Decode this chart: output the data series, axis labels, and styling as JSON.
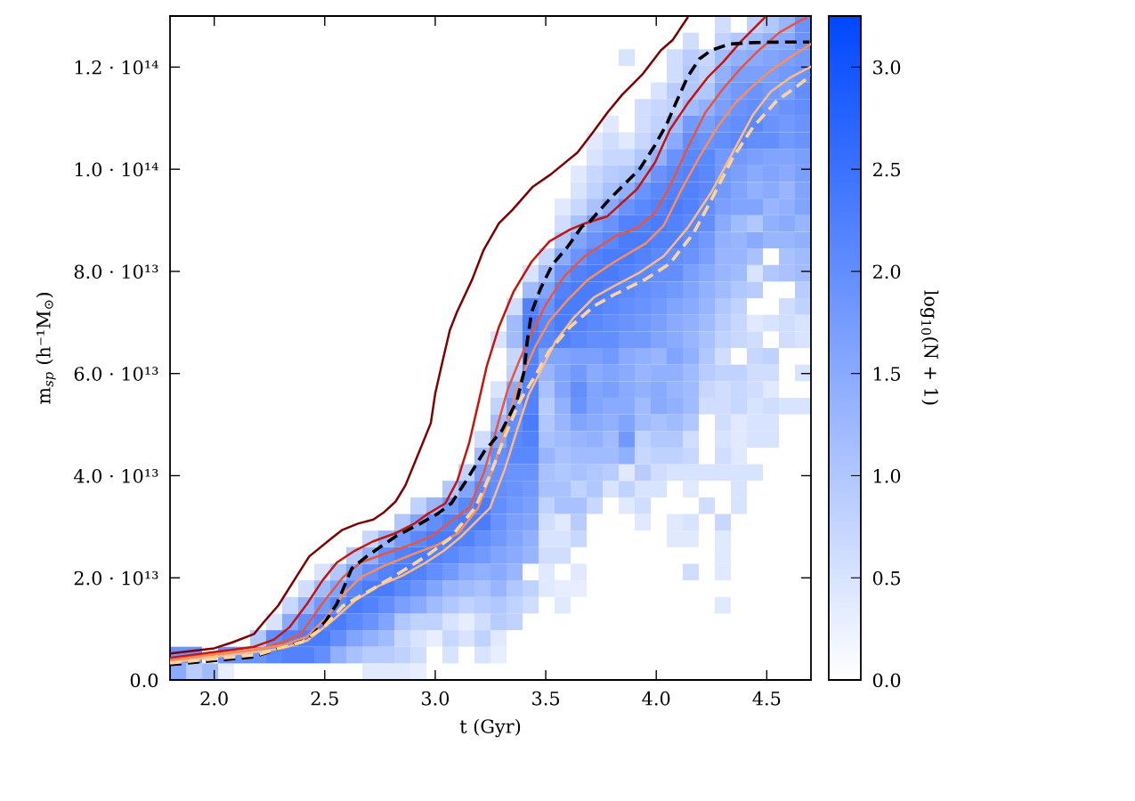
{
  "chart_data": {
    "type": "heatmap",
    "xlabel": "t (Gyr)",
    "ylabel": "m$_{sp}$ (h⁻¹M$_{⊙}$)",
    "clabel": "log$_{10}$(N + 1)",
    "xlim": [
      1.8,
      4.7
    ],
    "ylim": [
      0,
      130000000000000.0
    ],
    "xticks": [
      {
        "value": 2,
        "label": "2.0"
      },
      {
        "value": 2.5,
        "label": "2.5"
      },
      {
        "value": 3,
        "label": "3.0"
      },
      {
        "value": 3.5,
        "label": "3.5"
      },
      {
        "value": 4,
        "label": "4.0"
      },
      {
        "value": 4.5,
        "label": "4.5"
      }
    ],
    "yticks": [
      {
        "value": 0,
        "label": "0.0"
      },
      {
        "value": 20000000000000.0,
        "label": "2.0 · 10¹³"
      },
      {
        "value": 40000000000000.0,
        "label": "4.0 · 10¹³"
      },
      {
        "value": 60000000000000.0,
        "label": "6.0 · 10¹³"
      },
      {
        "value": 80000000000000.0,
        "label": "8.0 · 10¹³"
      },
      {
        "value": 100000000000000.0,
        "label": "1.0 · 10¹⁴"
      },
      {
        "value": 120000000000000.0,
        "label": "1.2 · 10¹⁴"
      }
    ],
    "colors": [
      "#ffffff",
      "#0047ff"
    ],
    "clim": [
      0,
      3.25
    ],
    "cticks": [
      {
        "value": 0,
        "label": "0.0"
      },
      {
        "value": 0.5,
        "label": "0.5"
      },
      {
        "value": 1,
        "label": "1.0"
      },
      {
        "value": 1.5,
        "label": "1.5"
      },
      {
        "value": 2,
        "label": "2.0"
      },
      {
        "value": 2.5,
        "label": "2.5"
      },
      {
        "value": 3,
        "label": "3.0"
      }
    ],
    "cells": [
      [
        null,
        null,
        null,
        null,
        null,
        null,
        null,
        null,
        null,
        null,
        null,
        null,
        null,
        null,
        null,
        null,
        null,
        null,
        null,
        null,
        null,
        null,
        null,
        null,
        null,
        null,
        null,
        null,
        null,
        null,
        null,
        null,
        null,
        null,
        0.6,
        null,
        0.8,
        1.0,
        1.3,
        1.9
      ],
      [
        null,
        null,
        null,
        null,
        null,
        null,
        null,
        null,
        null,
        null,
        null,
        null,
        null,
        null,
        null,
        null,
        null,
        null,
        null,
        null,
        null,
        null,
        null,
        null,
        null,
        null,
        null,
        null,
        null,
        null,
        null,
        null,
        0.6,
        null,
        0.8,
        1.0,
        1.2,
        1.4,
        1.5,
        1.9
      ],
      [
        null,
        null,
        null,
        null,
        null,
        null,
        null,
        null,
        null,
        null,
        null,
        null,
        null,
        null,
        null,
        null,
        null,
        null,
        null,
        null,
        null,
        null,
        null,
        null,
        null,
        null,
        null,
        null,
        0.5,
        null,
        null,
        0.6,
        0.9,
        0.7,
        1.2,
        1.4,
        1.5,
        1.6,
        1.7,
        1.8
      ],
      [
        null,
        null,
        null,
        null,
        null,
        null,
        null,
        null,
        null,
        null,
        null,
        null,
        null,
        null,
        null,
        null,
        null,
        null,
        null,
        null,
        null,
        null,
        null,
        null,
        null,
        null,
        null,
        null,
        null,
        null,
        null,
        0.6,
        1.0,
        0.8,
        1.4,
        1.7,
        1.7,
        1.7,
        1.8,
        1.9
      ],
      [
        null,
        null,
        null,
        null,
        null,
        null,
        null,
        null,
        null,
        null,
        null,
        null,
        null,
        null,
        null,
        null,
        null,
        null,
        null,
        null,
        null,
        null,
        null,
        null,
        null,
        null,
        null,
        null,
        null,
        null,
        0.5,
        0.9,
        1.0,
        1.0,
        1.6,
        1.8,
        1.9,
        1.8,
        1.7,
        2.0
      ],
      [
        null,
        null,
        null,
        null,
        null,
        null,
        null,
        null,
        null,
        null,
        null,
        null,
        null,
        null,
        null,
        null,
        null,
        null,
        null,
        null,
        null,
        null,
        null,
        null,
        null,
        null,
        null,
        null,
        null,
        0.6,
        0.7,
        0.8,
        1.2,
        1.4,
        1.7,
        1.9,
        2.0,
        1.8,
        1.9,
        2.0
      ],
      [
        null,
        null,
        null,
        null,
        null,
        null,
        null,
        null,
        null,
        null,
        null,
        null,
        null,
        null,
        null,
        null,
        null,
        null,
        null,
        null,
        null,
        null,
        null,
        null,
        null,
        null,
        null,
        0.4,
        null,
        0.6,
        0.8,
        1.2,
        1.8,
        1.7,
        1.9,
        2.0,
        2.1,
        1.9,
        1.8,
        1.9
      ],
      [
        null,
        null,
        null,
        null,
        null,
        null,
        null,
        null,
        null,
        null,
        null,
        null,
        null,
        null,
        null,
        null,
        null,
        null,
        null,
        null,
        null,
        null,
        null,
        null,
        null,
        null,
        0.4,
        0.6,
        0.4,
        0.7,
        1.0,
        1.5,
        2.0,
        1.9,
        2.0,
        2.1,
        2.0,
        2.0,
        1.8,
        1.9
      ],
      [
        null,
        null,
        null,
        null,
        null,
        null,
        null,
        null,
        null,
        null,
        null,
        null,
        null,
        null,
        null,
        null,
        null,
        null,
        null,
        null,
        null,
        null,
        null,
        null,
        null,
        null,
        0.5,
        0.7,
        0.7,
        1.0,
        1.4,
        1.9,
        2.1,
        2.1,
        1.8,
        1.8,
        1.7,
        1.6,
        1.6,
        1.7
      ],
      [
        null,
        null,
        null,
        null,
        null,
        null,
        null,
        null,
        null,
        null,
        null,
        null,
        null,
        null,
        null,
        null,
        null,
        null,
        null,
        null,
        null,
        null,
        null,
        null,
        null,
        0.4,
        0.7,
        0.9,
        1.0,
        1.4,
        1.9,
        2.1,
        2.2,
        2.1,
        1.8,
        1.7,
        1.5,
        1.6,
        1.5,
        1.7
      ],
      [
        null,
        null,
        null,
        null,
        null,
        null,
        null,
        null,
        null,
        null,
        null,
        null,
        null,
        null,
        null,
        null,
        null,
        null,
        null,
        null,
        null,
        null,
        null,
        null,
        null,
        0.5,
        0.8,
        1.1,
        1.4,
        1.9,
        2.1,
        2.2,
        2.2,
        2.1,
        1.8,
        1.6,
        1.4,
        1.5,
        1.3,
        1.6
      ],
      [
        null,
        null,
        null,
        null,
        null,
        null,
        null,
        null,
        null,
        null,
        null,
        null,
        null,
        null,
        null,
        null,
        null,
        null,
        null,
        null,
        null,
        null,
        null,
        null,
        0.4,
        0.7,
        1.1,
        1.5,
        1.9,
        2.1,
        2.2,
        2.3,
        2.2,
        2.0,
        1.7,
        1.6,
        1.6,
        1.3,
        1.4,
        1.6
      ],
      [
        null,
        null,
        null,
        null,
        null,
        null,
        null,
        null,
        null,
        null,
        null,
        null,
        null,
        null,
        null,
        null,
        null,
        null,
        null,
        null,
        null,
        null,
        null,
        null,
        0.6,
        1.1,
        1.7,
        1.9,
        2.2,
        2.2,
        2.3,
        2.2,
        2.1,
        2.0,
        1.5,
        1.2,
        1.0,
        1.4,
        1.5,
        1.3
      ],
      [
        null,
        null,
        null,
        null,
        null,
        null,
        null,
        null,
        null,
        null,
        null,
        null,
        null,
        null,
        null,
        null,
        null,
        null,
        null,
        null,
        null,
        null,
        null,
        null,
        1.0,
        1.6,
        1.9,
        2.1,
        2.3,
        2.3,
        2.2,
        2.2,
        2.0,
        1.8,
        1.4,
        1.3,
        1.5,
        1.3,
        1.3,
        1.4
      ],
      [
        null,
        null,
        null,
        null,
        null,
        null,
        null,
        null,
        null,
        null,
        null,
        null,
        null,
        null,
        null,
        null,
        null,
        null,
        null,
        null,
        null,
        null,
        null,
        0.7,
        1.5,
        1.9,
        2.2,
        2.3,
        2.3,
        2.2,
        2.1,
        2.0,
        1.9,
        1.7,
        1.3,
        1.3,
        1.1,
        null,
        1.1,
        1.2
      ],
      [
        null,
        null,
        null,
        null,
        null,
        null,
        null,
        null,
        null,
        null,
        null,
        null,
        null,
        null,
        null,
        null,
        null,
        null,
        null,
        null,
        null,
        null,
        0.5,
        1.2,
        1.9,
        2.2,
        2.3,
        2.3,
        2.2,
        2.1,
        2.0,
        2.0,
        1.7,
        1.5,
        1.3,
        1.2,
        0.5,
        1.0,
        1.1,
        1.2
      ],
      [
        null,
        null,
        null,
        null,
        null,
        null,
        null,
        null,
        null,
        null,
        null,
        null,
        null,
        null,
        null,
        null,
        null,
        null,
        null,
        null,
        null,
        null,
        1.2,
        1.6,
        2.2,
        2.3,
        2.3,
        2.2,
        2.1,
        2.0,
        1.9,
        1.8,
        1.6,
        1.4,
        1.2,
        1.0,
        0.9,
        null,
        null,
        0.9
      ],
      [
        null,
        null,
        null,
        null,
        null,
        null,
        null,
        null,
        null,
        null,
        null,
        null,
        null,
        null,
        null,
        null,
        null,
        null,
        null,
        null,
        null,
        0.6,
        2.2,
        1.9,
        2.3,
        2.3,
        2.2,
        2.1,
        2.0,
        1.9,
        1.8,
        1.6,
        1.5,
        1.3,
        1.0,
        0.8,
        null,
        null,
        0.6,
        0.8
      ],
      [
        null,
        null,
        null,
        null,
        null,
        null,
        null,
        null,
        null,
        null,
        null,
        null,
        null,
        null,
        null,
        null,
        null,
        null,
        null,
        null,
        null,
        1.2,
        2.3,
        2.1,
        2.3,
        2.2,
        2.1,
        2.0,
        1.9,
        1.8,
        1.7,
        1.5,
        1.4,
        1.2,
        0.9,
        0.7,
        0.4,
        0.5,
        0.6,
        0.5
      ],
      [
        null,
        null,
        null,
        null,
        null,
        null,
        null,
        null,
        null,
        null,
        null,
        null,
        null,
        null,
        null,
        null,
        null,
        null,
        null,
        null,
        0.5,
        1.2,
        2.3,
        2.1,
        2.2,
        2.1,
        2.0,
        2.0,
        1.8,
        1.8,
        1.6,
        1.5,
        1.3,
        1.1,
        0.8,
        0.7,
        0.6,
        null,
        0.6,
        0.5
      ],
      [
        null,
        null,
        null,
        null,
        null,
        null,
        null,
        null,
        null,
        null,
        null,
        null,
        null,
        null,
        null,
        null,
        null,
        null,
        null,
        null,
        null,
        0.7,
        2.2,
        1.6,
        1.6,
        1.7,
        1.7,
        1.8,
        1.5,
        1.4,
        1.3,
        1.6,
        1.4,
        1.0,
        0.6,
        null,
        0.7,
        0.8,
        null,
        null
      ],
      [
        null,
        null,
        null,
        null,
        null,
        null,
        null,
        null,
        null,
        null,
        null,
        null,
        null,
        null,
        null,
        null,
        null,
        null,
        null,
        null,
        null,
        0.8,
        2.2,
        1.3,
        1.6,
        1.8,
        1.5,
        1.6,
        1.5,
        1.3,
        1.4,
        1.4,
        1.2,
        0.9,
        0.8,
        0.8,
        0.6,
        0.6,
        null,
        0.5
      ],
      [
        null,
        null,
        null,
        null,
        null,
        null,
        null,
        null,
        null,
        null,
        null,
        null,
        null,
        null,
        null,
        null,
        null,
        null,
        null,
        null,
        0.5,
        1.5,
        2.2,
        1.1,
        1.6,
        2.0,
        1.6,
        1.7,
        1.5,
        1.4,
        1.5,
        1.3,
        1.2,
        0.7,
        0.6,
        0.7,
        0.6,
        0.4,
        null,
        null
      ],
      [
        null,
        null,
        null,
        null,
        null,
        null,
        null,
        null,
        null,
        null,
        null,
        null,
        null,
        null,
        null,
        null,
        null,
        null,
        null,
        null,
        0.8,
        1.8,
        2.2,
        0.9,
        1.4,
        1.9,
        1.6,
        1.5,
        1.5,
        1.2,
        1.5,
        1.4,
        1.2,
        0.6,
        0.6,
        0.7,
        0.5,
        0.6,
        0.5,
        0.5
      ],
      [
        null,
        null,
        null,
        null,
        null,
        null,
        null,
        null,
        null,
        null,
        null,
        null,
        null,
        null,
        null,
        null,
        null,
        null,
        null,
        null,
        1.2,
        2.0,
        2.3,
        1.0,
        1.3,
        1.6,
        1.5,
        1.4,
        1.6,
        1.2,
        1.1,
        1.2,
        1.0,
        null,
        0.6,
        0.4,
        0.5,
        0.5,
        null,
        null
      ],
      [
        null,
        null,
        null,
        null,
        null,
        null,
        null,
        null,
        null,
        null,
        null,
        null,
        null,
        null,
        null,
        null,
        null,
        null,
        null,
        0.6,
        1.6,
        2.1,
        2.2,
        1.1,
        1.2,
        1.3,
        1.4,
        1.2,
        1.8,
        0.8,
        1.0,
        1.0,
        0.6,
        null,
        0.5,
        0.4,
        0.5,
        0.5,
        null,
        null
      ],
      [
        null,
        null,
        null,
        null,
        null,
        null,
        null,
        null,
        null,
        null,
        null,
        null,
        null,
        null,
        null,
        null,
        null,
        null,
        null,
        1.2,
        2.0,
        2.1,
        2.1,
        1.3,
        1.1,
        1.2,
        1.2,
        1.2,
        1.4,
        0.7,
        0.8,
        0.8,
        0.7,
        null,
        0.6,
        0.4,
        null,
        null,
        null,
        null
      ],
      [
        null,
        null,
        null,
        null,
        null,
        null,
        null,
        null,
        null,
        null,
        null,
        null,
        null,
        null,
        null,
        null,
        null,
        null,
        0.8,
        1.7,
        2.0,
        1.9,
        1.9,
        1.1,
        1.0,
        1.1,
        1.0,
        0.9,
        0.4,
        0.9,
        0.6,
        0.5,
        0.5,
        0.5,
        0.5,
        0.5,
        0.5,
        null,
        null,
        null
      ],
      [
        null,
        null,
        null,
        null,
        null,
        null,
        null,
        null,
        null,
        null,
        null,
        null,
        null,
        null,
        null,
        null,
        null,
        1.0,
        1.6,
        2.1,
        2.0,
        1.9,
        1.8,
        1.1,
        1.1,
        0.8,
        1.0,
        0.5,
        0.8,
        0.5,
        0.5,
        null,
        0.4,
        null,
        null,
        0.5,
        null,
        null,
        null,
        null
      ],
      [
        null,
        null,
        null,
        null,
        null,
        null,
        null,
        null,
        null,
        null,
        null,
        null,
        null,
        null,
        null,
        0.8,
        1.3,
        1.8,
        2.1,
        2.3,
        2.0,
        1.8,
        1.7,
        0.8,
        1.1,
        1.1,
        0.7,
        null,
        0.4,
        0.6,
        null,
        null,
        null,
        0.6,
        null,
        0.5,
        null,
        null,
        null,
        null
      ],
      [
        null,
        null,
        null,
        null,
        null,
        null,
        null,
        null,
        null,
        null,
        null,
        null,
        null,
        null,
        1.0,
        1.6,
        2.0,
        2.2,
        2.3,
        2.3,
        1.9,
        1.7,
        1.6,
        0.6,
        0.4,
        0.9,
        null,
        null,
        null,
        0.4,
        null,
        0.4,
        0.5,
        null,
        0.7,
        null,
        null,
        null,
        null,
        null
      ],
      [
        null,
        null,
        null,
        null,
        null,
        null,
        null,
        null,
        null,
        null,
        null,
        null,
        0.7,
        1.3,
        1.8,
        2.1,
        2.3,
        2.3,
        2.2,
        2.0,
        1.8,
        1.6,
        1.4,
        0.5,
        0.5,
        0.7,
        null,
        null,
        null,
        null,
        null,
        0.4,
        0.4,
        null,
        0.4,
        null,
        null,
        null,
        null,
        null
      ],
      [
        null,
        null,
        null,
        null,
        null,
        null,
        null,
        null,
        null,
        null,
        null,
        0.9,
        1.4,
        2.0,
        2.2,
        2.3,
        2.2,
        2.1,
        1.9,
        1.8,
        1.6,
        1.5,
        1.3,
        0.6,
        0.6,
        null,
        null,
        null,
        null,
        null,
        null,
        null,
        null,
        null,
        0.4,
        null,
        null,
        null,
        null,
        null
      ],
      [
        null,
        null,
        null,
        null,
        null,
        null,
        null,
        null,
        null,
        0.5,
        1.0,
        1.6,
        2.0,
        2.2,
        2.3,
        2.2,
        2.0,
        1.8,
        1.5,
        1.4,
        1.5,
        1.3,
        null,
        0.4,
        null,
        0.4,
        null,
        null,
        null,
        null,
        null,
        null,
        0.6,
        null,
        0.4,
        null,
        null,
        null,
        null,
        null
      ],
      [
        null,
        null,
        null,
        null,
        null,
        null,
        null,
        null,
        0.6,
        1.2,
        1.6,
        2.1,
        2.3,
        2.3,
        2.1,
        1.9,
        1.6,
        1.3,
        1.2,
        1.1,
        1.3,
        1.0,
        0.8,
        0.4,
        0.3,
        0.3,
        null,
        null,
        null,
        null,
        null,
        null,
        null,
        null,
        null,
        null,
        null,
        null,
        null,
        null
      ],
      [
        null,
        null,
        null,
        null,
        null,
        null,
        null,
        0.7,
        1.3,
        1.8,
        2.1,
        2.3,
        2.2,
        2.0,
        1.7,
        1.5,
        1.2,
        1.0,
        0.8,
        0.9,
        1.0,
        0.8,
        0.6,
        null,
        0.4,
        null,
        null,
        null,
        null,
        null,
        null,
        null,
        null,
        null,
        0.4,
        null,
        null,
        null,
        null,
        null
      ],
      [
        null,
        null,
        null,
        null,
        null,
        null,
        0.5,
        1.5,
        2.0,
        2.2,
        2.3,
        2.1,
        1.9,
        1.6,
        1.0,
        0.8,
        0.8,
        0.5,
        0.3,
        0.6,
        0.9,
        0.8,
        null,
        null,
        null,
        null,
        null,
        null,
        null,
        null,
        null,
        null,
        null,
        null,
        null,
        null,
        null,
        null,
        null,
        null
      ],
      [
        null,
        null,
        null,
        null,
        null,
        1.0,
        2.0,
        2.2,
        2.3,
        2.3,
        2.0,
        1.6,
        1.4,
        1.2,
        0.7,
        0.5,
        0.3,
        0.7,
        0.5,
        0.8,
        0.4,
        null,
        null,
        null,
        null,
        null,
        null,
        null,
        null,
        null,
        null,
        null,
        null,
        null,
        null,
        null,
        null,
        null,
        null,
        null
      ],
      [
        1.9,
        1.9,
        null,
        1.9,
        1.9,
        1.9,
        2.1,
        2.2,
        2.2,
        2.0,
        1.4,
        1.1,
        0.9,
        0.9,
        0.8,
        0.6,
        null,
        0.5,
        null,
        0.5,
        0.3,
        null,
        null,
        null,
        null,
        null,
        null,
        null,
        null,
        null,
        null,
        null,
        null,
        null,
        null,
        null,
        null,
        null,
        null,
        null
      ],
      [
        1.5,
        0.9,
        1.2,
        0.3,
        null,
        null,
        null,
        null,
        null,
        null,
        null,
        null,
        0.4,
        0.4,
        0.4,
        0.3,
        null,
        null,
        null,
        null,
        null,
        null,
        null,
        null,
        null,
        null,
        null,
        null,
        null,
        null,
        null,
        null,
        null,
        null,
        null,
        null,
        null,
        null,
        null,
        null
      ]
    ],
    "series": [
      {
        "type": "line",
        "color": "#7f0000",
        "line_style": "solid",
        "x": [
          1.8,
          2.0,
          2.085,
          2.18,
          2.22,
          2.29,
          2.37,
          2.43,
          2.53,
          2.58,
          2.65,
          2.72,
          2.77,
          2.82,
          2.865,
          2.92,
          2.98,
          3.0,
          3.033,
          3.066,
          3.098,
          3.167,
          3.219,
          3.288,
          3.348,
          3.442,
          3.523,
          3.644,
          3.711,
          3.779,
          3.846,
          3.94,
          4.021,
          4.074,
          4.142
        ],
        "values": [
          5200000000000.0,
          6200000000000.0,
          7400000000000.0,
          9000000000000.0,
          11100000000000.0,
          14600000000000.0,
          20100000000000.0,
          24200000000000.0,
          27700000000000.0,
          29400000000000.0,
          30600000000000.0,
          31400000000000.0,
          32900000000000.0,
          34900000000000.0,
          38100000000000.0,
          43900000000000.0,
          50300000000000.0,
          56100000000000.0,
          62400000000000.0,
          68500000000000.0,
          72000000000000.0,
          78400000000000.0,
          84200000000000.0,
          89400000000000.0,
          92000000000000.0,
          96600000000000.0,
          99000000000000.0,
          103300000000000.0,
          107100000000000.0,
          111100000000000.0,
          114600000000000.0,
          118700000000000.0,
          123300000000000.0,
          125300000000000.0,
          129700000000000.0
        ]
      },
      {
        "type": "line",
        "color": "#c4160f",
        "line_style": "solid",
        "x": [
          1.8,
          2.18,
          2.27,
          2.34,
          2.42,
          2.49,
          2.555,
          2.636,
          2.717,
          2.824,
          2.905,
          2.958,
          3.046,
          3.1,
          3.154,
          3.194,
          3.234,
          3.288,
          3.355,
          3.436,
          3.517,
          3.61,
          3.678,
          3.779,
          3.913,
          3.994,
          4.061,
          4.142,
          4.235,
          4.303,
          4.383,
          4.491
        ],
        "values": [
          4300000000000.0,
          6500000000000.0,
          7900000000000.0,
          10300000000000.0,
          14900000000000.0,
          19500000000000.0,
          23000000000000.0,
          25300000000000.0,
          27100000000000.0,
          28800000000000.0,
          30600000000000.0,
          32300000000000.0,
          34600000000000.0,
          39000000000000.0,
          46500000000000.0,
          54000000000000.0,
          61600000000000.0,
          69100000000000.0,
          76100000000000.0,
          81900000000000.0,
          85900000000000.0,
          88200000000000.0,
          89400000000000.0,
          90800000000000.0,
          96100000000000.0,
          101300000000000.0,
          107700000000000.0,
          112900000000000.0,
          118100000000000.0,
          121000000000000.0,
          125000000000000.0,
          129700000000000.0
        ]
      },
      {
        "type": "line",
        "color": "#e9553c",
        "line_style": "solid",
        "x": [
          1.8,
          2.22,
          2.31,
          2.394,
          2.488,
          2.582,
          2.663,
          2.771,
          2.892,
          2.985,
          3.053,
          3.154,
          3.221,
          3.275,
          3.328,
          3.382,
          3.436,
          3.503,
          3.583,
          3.678,
          3.758,
          3.812,
          3.913,
          3.994,
          4.061,
          4.142,
          4.222,
          4.303,
          4.383,
          4.464,
          4.558,
          4.652,
          4.679
        ],
        "values": [
          4000000000000.0,
          6200000000000.0,
          7400000000000.0,
          9100000000000.0,
          14900000000000.0,
          20100000000000.0,
          23000000000000.0,
          24700000000000.0,
          26500000000000.0,
          28200000000000.0,
          30500000000000.0,
          33700000000000.0,
          40700000000000.0,
          48800000000000.0,
          56900000000000.0,
          62700000000000.0,
          67900000000000.0,
          73700000000000.0,
          79000000000000.0,
          83000000000000.0,
          85300000000000.0,
          86800000000000.0,
          88500000000000.0,
          91400000000000.0,
          96600000000000.0,
          104200000000000.0,
          111100000000000.0,
          115800000000000.0,
          119800000000000.0,
          123300000000000.0,
          126800000000000.0,
          129100000000000.0,
          129600000000000.0
        ]
      },
      {
        "type": "line",
        "color": "#fc8d59",
        "line_style": "solid",
        "x": [
          1.8,
          2.313,
          2.421,
          2.502,
          2.582,
          2.663,
          2.771,
          2.892,
          3.013,
          3.106,
          3.194,
          3.261,
          3.315,
          3.369,
          3.409,
          3.449,
          3.517,
          3.597,
          3.691,
          3.812,
          3.953,
          4.034,
          4.115,
          4.195,
          4.276,
          4.356,
          4.437,
          4.518,
          4.612,
          4.7
        ],
        "values": [
          3800000000000.0,
          6800000000000.0,
          8500000000000.0,
          12000000000000.0,
          16600000000000.0,
          20100000000000.0,
          22400000000000.0,
          24500000000000.0,
          26500000000000.0,
          28800000000000.0,
          33700000000000.0,
          41300000000000.0,
          48800000000000.0,
          56900000000000.0,
          61000000000000.0,
          65000000000000.0,
          70300000000000.0,
          74300000000000.0,
          78400000000000.0,
          81900000000000.0,
          85500000000000.0,
          89000000000000.0,
          96100000000000.0,
          102400000000000.0,
          108200000000000.0,
          112900000000000.0,
          116300000000000.0,
          119300000000000.0,
          122100000000000.0,
          124500000000000.0
        ]
      },
      {
        "type": "line",
        "color": "#fdbb84",
        "line_style": "solid",
        "x": [
          1.8,
          2.313,
          2.421,
          2.529,
          2.636,
          2.744,
          2.851,
          2.958,
          3.039,
          3.12,
          3.248,
          3.315,
          3.369,
          3.422,
          3.476,
          3.543,
          3.624,
          3.718,
          3.812,
          3.926,
          4.034,
          4.142,
          4.249,
          4.343,
          4.437,
          4.518,
          4.612,
          4.7
        ],
        "values": [
          3400000000000.0,
          6200000000000.0,
          7700000000000.0,
          11400000000000.0,
          15500000000000.0,
          18400000000000.0,
          20400000000000.0,
          23000000000000.0,
          25300000000000.0,
          28200000000000.0,
          33700000000000.0,
          41300000000000.0,
          48800000000000.0,
          55800000000000.0,
          60400000000000.0,
          66200000000000.0,
          70800000000000.0,
          74900000000000.0,
          77200000000000.0,
          79800000000000.0,
          83000000000000.0,
          88500000000000.0,
          95500000000000.0,
          103000000000000.0,
          110600000000000.0,
          115200000000000.0,
          118100000000000.0,
          120100000000000.0
        ]
      },
      {
        "type": "line",
        "color": "#000000",
        "line_style": "dashed",
        "x": [
          1.8,
          2.179,
          2.421,
          2.502,
          2.555,
          2.623,
          2.69,
          2.824,
          2.932,
          3.013,
          3.073,
          3.14,
          3.221,
          3.301,
          3.369,
          3.402,
          3.416,
          3.436,
          3.476,
          3.53,
          3.597,
          3.664,
          3.698,
          3.792,
          3.873,
          3.926,
          3.994,
          4.047,
          4.088,
          4.142,
          4.195,
          4.249,
          4.33,
          4.437,
          4.572,
          4.693
        ],
        "values": [
          3000000000000.0,
          4500000000000.0,
          7900000000000.0,
          11400000000000.0,
          14900000000000.0,
          21900000000000.0,
          24200000000000.0,
          28200000000000.0,
          30600000000000.0,
          32600000000000.0,
          34600000000000.0,
          39000000000000.0,
          44700000000000.0,
          48800000000000.0,
          54600000000000.0,
          60400000000000.0,
          66200000000000.0,
          72000000000000.0,
          76600000000000.0,
          81300000000000.0,
          84700000000000.0,
          88800000000000.0,
          89700000000000.0,
          94300000000000.0,
          97800000000000.0,
          100100000000000.0,
          104700000000000.0,
          108800000000000.0,
          112900000000000.0,
          118100000000000.0,
          121600000000000.0,
          123300000000000.0,
          124500000000000.0,
          124800000000000.0,
          124900000000000.0,
          124900000000000.0
        ]
      },
      {
        "type": "line",
        "color": "#fdd49e",
        "line_style": "dashed",
        "x": [
          1.8,
          2.2,
          2.4,
          2.5,
          2.582,
          2.717,
          2.851,
          2.958,
          3.066,
          3.18,
          3.248,
          3.315,
          3.382,
          3.449,
          3.517,
          3.61,
          3.718,
          3.812,
          3.953,
          4.061,
          4.169,
          4.249,
          4.343,
          4.437,
          4.545,
          4.639,
          4.7
        ],
        "values": [
          3300000000000.0,
          5000000000000.0,
          7500000000000.0,
          10500000000000.0,
          14500000000000.0,
          17800000000000.0,
          21300000000000.0,
          24200000000000.0,
          27700000000000.0,
          33700000000000.0,
          40100000000000.0,
          47700000000000.0,
          54600000000000.0,
          59300000000000.0,
          64500000000000.0,
          69100000000000.0,
          73200000000000.0,
          75500000000000.0,
          78500000000000.0,
          81500000000000.0,
          87500000000000.0,
          94000000000000.0,
          102000000000000.0,
          108200000000000.0,
          113400000000000.0,
          116300000000000.0,
          118400000000000.0
        ]
      }
    ]
  }
}
